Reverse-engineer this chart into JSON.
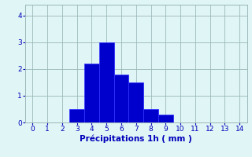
{
  "categories": [
    3,
    4,
    5,
    6,
    7,
    8,
    9
  ],
  "values": [
    0.5,
    2.2,
    3.0,
    1.8,
    1.5,
    0.5,
    0.3
  ],
  "bar_color": "#0000cc",
  "bar_edge_color": "#3333ff",
  "background_color": "#e0f5f5",
  "grid_color": "#9ab8b8",
  "text_color": "#0000bb",
  "xlabel": "Précipitations 1h ( mm )",
  "xlim": [
    -0.5,
    14.5
  ],
  "ylim": [
    0,
    4.4
  ],
  "yticks": [
    0,
    1,
    2,
    3,
    4
  ],
  "xticks": [
    0,
    1,
    2,
    3,
    4,
    5,
    6,
    7,
    8,
    9,
    10,
    11,
    12,
    13,
    14
  ],
  "bar_width": 1.0
}
